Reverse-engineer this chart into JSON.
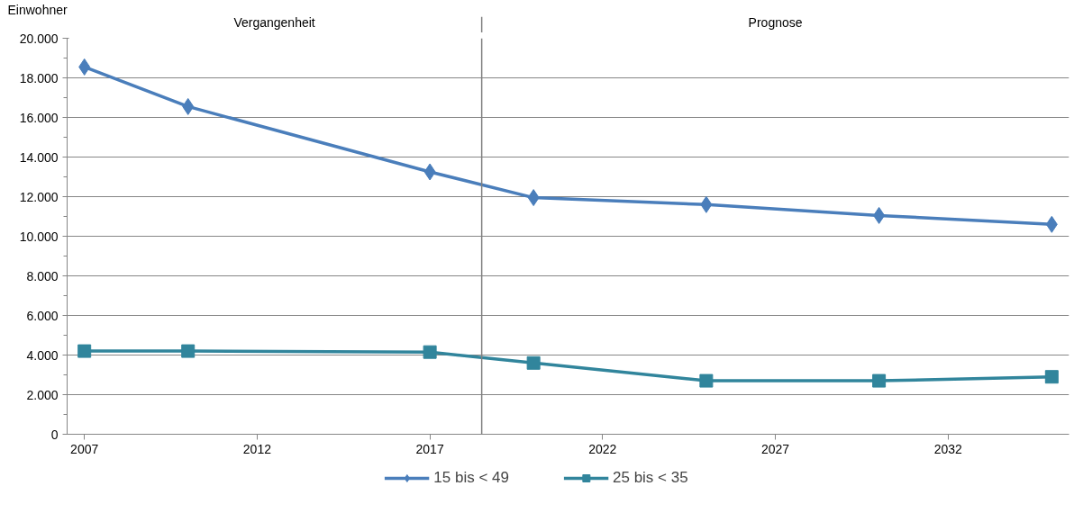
{
  "chart_data": {
    "type": "line",
    "ylabel": "Einwohner",
    "annotations": [
      "Vergangenheit",
      "Prognose"
    ],
    "x": [
      2007,
      2010,
      2017,
      2020,
      2025,
      2030,
      2035
    ],
    "series": [
      {
        "name": "15 bis < 49",
        "color": "#4a7ebb",
        "marker": "diamond",
        "values": [
          18550,
          16550,
          13250,
          11950,
          11600,
          11050,
          10600
        ]
      },
      {
        "name": "25 bis < 35",
        "color": "#31859c",
        "marker": "square",
        "values": [
          4200,
          4200,
          4150,
          3600,
          2700,
          2700,
          2900
        ]
      }
    ],
    "xlim": [
      2006.5,
      2035.5
    ],
    "xticks": [
      2007,
      2012,
      2017,
      2022,
      2027,
      2032
    ],
    "ylim": [
      0,
      20000
    ],
    "yticks": [
      0,
      {
        "value": 1000,
        "label": null
      },
      {
        "value": 2000,
        "label": "2.000"
      },
      {
        "value": 3000,
        "label": null
      },
      {
        "value": 4000,
        "label": "4.000"
      },
      {
        "value": 5000,
        "label": null
      },
      {
        "value": 6000,
        "label": "6.000"
      },
      {
        "value": 7000,
        "label": null
      },
      {
        "value": 8000,
        "label": "8.000"
      },
      {
        "value": 9000,
        "label": null
      },
      {
        "value": 10000,
        "label": "10.000"
      },
      {
        "value": 11000,
        "label": null
      },
      {
        "value": 12000,
        "label": "12.000"
      },
      {
        "value": 13000,
        "label": null
      },
      {
        "value": 14000,
        "label": "14.000"
      },
      {
        "value": 15000,
        "label": null
      },
      {
        "value": 16000,
        "label": "16.000"
      },
      {
        "value": 17000,
        "label": null
      },
      {
        "value": 18000,
        "label": "18.000"
      },
      {
        "value": 19000,
        "label": null
      },
      {
        "value": 20000,
        "label": "20.000"
      }
    ],
    "ref_lines": [
      {
        "axis": "x",
        "value": 2018.5,
        "color": "#808080"
      }
    ],
    "grid": "y",
    "legend": "bottom",
    "line_style": "solid"
  }
}
